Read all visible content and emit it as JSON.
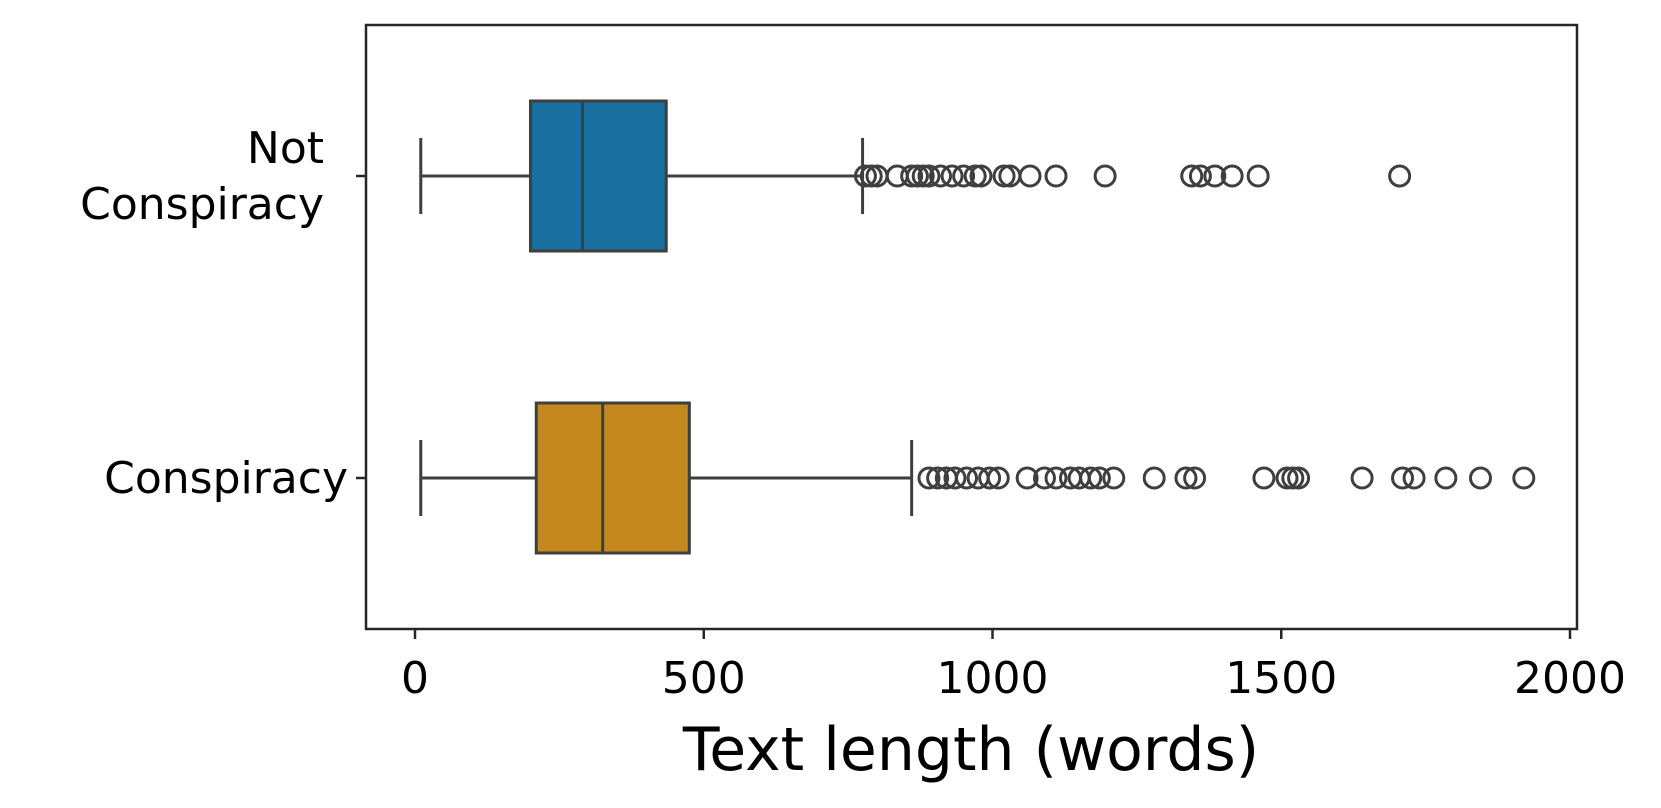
{
  "chart_data": {
    "type": "boxplot",
    "orientation": "horizontal",
    "xlabel": "Text length (words)",
    "ylabel": "",
    "xlim": [
      -100,
      2020
    ],
    "xticks": [
      0,
      500,
      1000,
      1500,
      2000
    ],
    "xtick_labels": [
      "0",
      "500",
      "1000",
      "1500",
      "2000"
    ],
    "grid": false,
    "categories": [
      "Not\nConspiracy",
      "Conspiracy"
    ],
    "series": [
      {
        "category": "Not Conspiracy",
        "color": "#1a6fa1",
        "whisker_low": 10,
        "q1": 200,
        "median": 290,
        "q3": 435,
        "whisker_high": 775,
        "outliers": [
          780,
          790,
          800,
          835,
          860,
          870,
          880,
          890,
          910,
          930,
          950,
          970,
          980,
          1020,
          1030,
          1065,
          1110,
          1195,
          1345,
          1360,
          1385,
          1415,
          1460,
          1705
        ]
      },
      {
        "category": "Conspiracy",
        "color": "#c4881f",
        "whisker_low": 10,
        "q1": 210,
        "median": 325,
        "q3": 475,
        "whisker_high": 860,
        "outliers": [
          890,
          905,
          920,
          935,
          955,
          975,
          995,
          1010,
          1060,
          1090,
          1110,
          1135,
          1150,
          1170,
          1185,
          1210,
          1280,
          1335,
          1350,
          1470,
          1510,
          1520,
          1530,
          1640,
          1710,
          1730,
          1785,
          1845,
          1920
        ]
      }
    ]
  }
}
